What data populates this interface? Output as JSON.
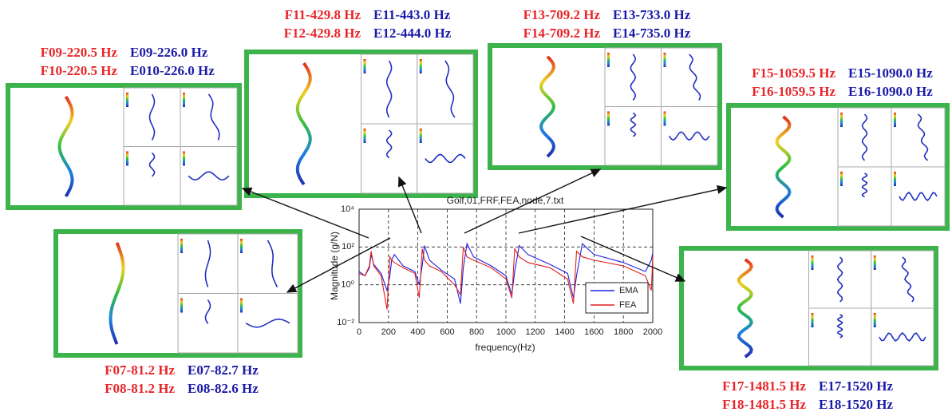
{
  "chart_data": {
    "type": "line",
    "title": "Golf,01,FRF,FEA,node,7.txt",
    "x_label": "frequency(Hz)",
    "y_label": "Magnitude (g/N)",
    "log_y": true,
    "grid": true,
    "legend": "lower right",
    "x": [
      0,
      40,
      70,
      82,
      100,
      150,
      190,
      210,
      222,
      240,
      300,
      380,
      410,
      430,
      445,
      480,
      560,
      650,
      690,
      710,
      735,
      780,
      900,
      1000,
      1040,
      1060,
      1090,
      1150,
      1300,
      1420,
      1460,
      1481,
      1520,
      1600,
      1800,
      1950,
      1990,
      2000
    ],
    "series": [
      {
        "name": "EMA",
        "color": "#1f1fe0",
        "values": [
          5,
          3,
          8,
          40,
          12,
          4,
          0.5,
          3,
          20,
          40,
          10,
          5,
          1,
          10,
          120,
          20,
          6,
          2,
          0.1,
          8,
          150,
          30,
          10,
          3,
          0.3,
          5,
          120,
          40,
          12,
          4,
          0.2,
          3,
          150,
          40,
          15,
          5,
          20,
          50
        ]
      },
      {
        "name": "FEA",
        "color": "#e01f1f",
        "values": [
          4,
          3,
          10,
          60,
          10,
          3,
          0.05,
          30,
          20,
          15,
          8,
          4,
          0.2,
          80,
          20,
          10,
          5,
          1,
          0.3,
          100,
          30,
          20,
          8,
          2,
          0.2,
          80,
          30,
          15,
          8,
          2,
          0.1,
          60,
          30,
          20,
          10,
          3,
          0.5,
          30
        ]
      }
    ],
    "xlim": [
      0,
      2000
    ],
    "xticks": [
      0,
      200,
      400,
      600,
      800,
      1000,
      1200,
      1400,
      1600,
      1800,
      2000
    ],
    "ylim": [
      0.01,
      10000
    ],
    "yticks": [
      {
        "value": 0.01,
        "label": "10⁻²"
      },
      {
        "value": 1,
        "label": "10⁰"
      },
      {
        "value": 100,
        "label": "10²"
      },
      {
        "value": 10000,
        "label": "10⁴"
      }
    ]
  },
  "mode_panels": [
    {
      "rows": [
        [
          "F09-220.5 Hz",
          "E09-226.0 Hz"
        ],
        [
          "F10-220.5 Hz",
          "E010-226.0 Hz"
        ]
      ]
    },
    {
      "rows": [
        [
          "F11-429.8 Hz",
          "E11-443.0 Hz"
        ],
        [
          "F12-429.8 Hz",
          "E12-444.0 Hz"
        ]
      ]
    },
    {
      "rows": [
        [
          "F13-709.2 Hz",
          "E13-733.0 Hz"
        ],
        [
          "F14-709.2 Hz",
          "E14-735.0 Hz"
        ]
      ]
    },
    {
      "rows": [
        [
          "F15-1059.5 Hz",
          "E15-1090.0 Hz"
        ],
        [
          "F16-1059.5 Hz",
          "E16-1090.0 Hz"
        ]
      ]
    },
    {
      "rows": [
        [
          "F07-81.2 Hz",
          "E07-82.7 Hz"
        ],
        [
          "F08-81.2 Hz",
          "E08-82.6 Hz"
        ]
      ]
    },
    {
      "rows": [
        [
          "F17-1481.5 Hz",
          "E17-1520 Hz"
        ],
        [
          "F18-1481.5 Hz",
          "E18-1520 Hz"
        ]
      ]
    }
  ]
}
